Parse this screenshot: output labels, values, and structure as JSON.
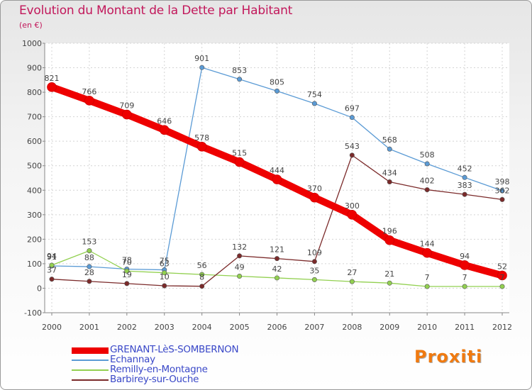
{
  "chart_data": {
    "type": "line",
    "title": "Evolution du Montant de la Dette par Habitant",
    "unit_label": "(en €)",
    "xlabel": "",
    "ylabel": "",
    "x": [
      "2000",
      "2001",
      "2002",
      "2003",
      "2004",
      "2005",
      "2006",
      "2007",
      "2008",
      "2009",
      "2010",
      "2011",
      "2012"
    ],
    "ylim": [
      -100,
      1000
    ],
    "yticks": [
      -100,
      0,
      100,
      200,
      300,
      400,
      500,
      600,
      700,
      800,
      900,
      1000
    ],
    "grid": true,
    "legend_position": "bottom-left",
    "series": [
      {
        "name": "GRENANT-LèS-SOMBERNON",
        "color": "#ee0000",
        "emphasis": true,
        "values": [
          821,
          766,
          709,
          646,
          578,
          515,
          444,
          370,
          300,
          196,
          144,
          94,
          52
        ]
      },
      {
        "name": "Echannay",
        "color": "#5b9bd5",
        "values": [
          91,
          88,
          78,
          75,
          901,
          853,
          805,
          754,
          697,
          568,
          508,
          452,
          398
        ]
      },
      {
        "name": "Remilly-en-Montagne",
        "color": "#92d050",
        "values": [
          94,
          153,
          70,
          63,
          56,
          49,
          42,
          35,
          27,
          21,
          7,
          7,
          7
        ]
      },
      {
        "name": "Barbirey-sur-Ouche",
        "color": "#7b2a2a",
        "values": [
          37,
          28,
          19,
          10,
          8,
          132,
          121,
          109,
          543,
          434,
          402,
          383,
          362
        ]
      }
    ]
  },
  "brand": {
    "name": "Proxiti"
  }
}
